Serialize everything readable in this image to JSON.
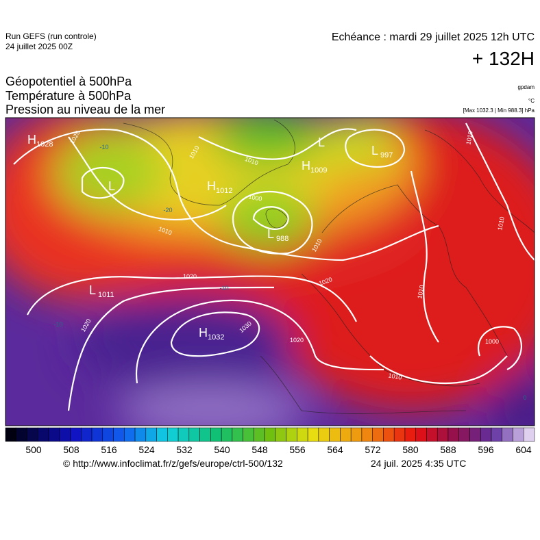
{
  "header": {
    "run": "Run GEFS (run controle)",
    "run_date": "24 juillet 2025 00Z",
    "valid": "Echéance : mardi 29 juillet 2025 12h UTC",
    "lead": "+ 132H",
    "titles": [
      "Géopotentiel à 500hPa",
      "Température à 500hPa",
      "Pression au niveau de la mer"
    ],
    "units": [
      "gpdam",
      "°C",
      "[Max 1032.3 | Min 988.3] hPa"
    ]
  },
  "map": {
    "centers": [
      {
        "letter": "H",
        "value": "1028"
      },
      {
        "letter": "L",
        "value": null
      },
      {
        "letter": "H",
        "value": "1012"
      },
      {
        "letter": "H",
        "value": "1009"
      },
      {
        "letter": "L",
        "value": null
      },
      {
        "letter": "L",
        "value": "997"
      },
      {
        "letter": "L",
        "value": "988"
      },
      {
        "letter": "L",
        "value": "1011"
      },
      {
        "letter": "H",
        "value": "1032"
      }
    ],
    "isobar_labels": [
      "1020",
      "1010",
      "1010",
      "1000",
      "1010",
      "1020",
      "1020",
      "1030",
      "1020",
      "1020",
      "1010",
      "1000",
      "1010",
      "1010",
      "1010",
      "1010"
    ],
    "temperature_labels": [
      "-20",
      "-10",
      "-10",
      "-10",
      "0"
    ]
  },
  "colorbar": {
    "ticks": [
      500,
      508,
      516,
      524,
      532,
      540,
      548,
      556,
      564,
      572,
      580,
      588,
      596,
      604
    ]
  },
  "footer": {
    "source": "© http://www.infoclimat.fr/z/gefs/europe/ctrl-500/132",
    "generated": "24 juil. 2025  4:35 UTC"
  }
}
